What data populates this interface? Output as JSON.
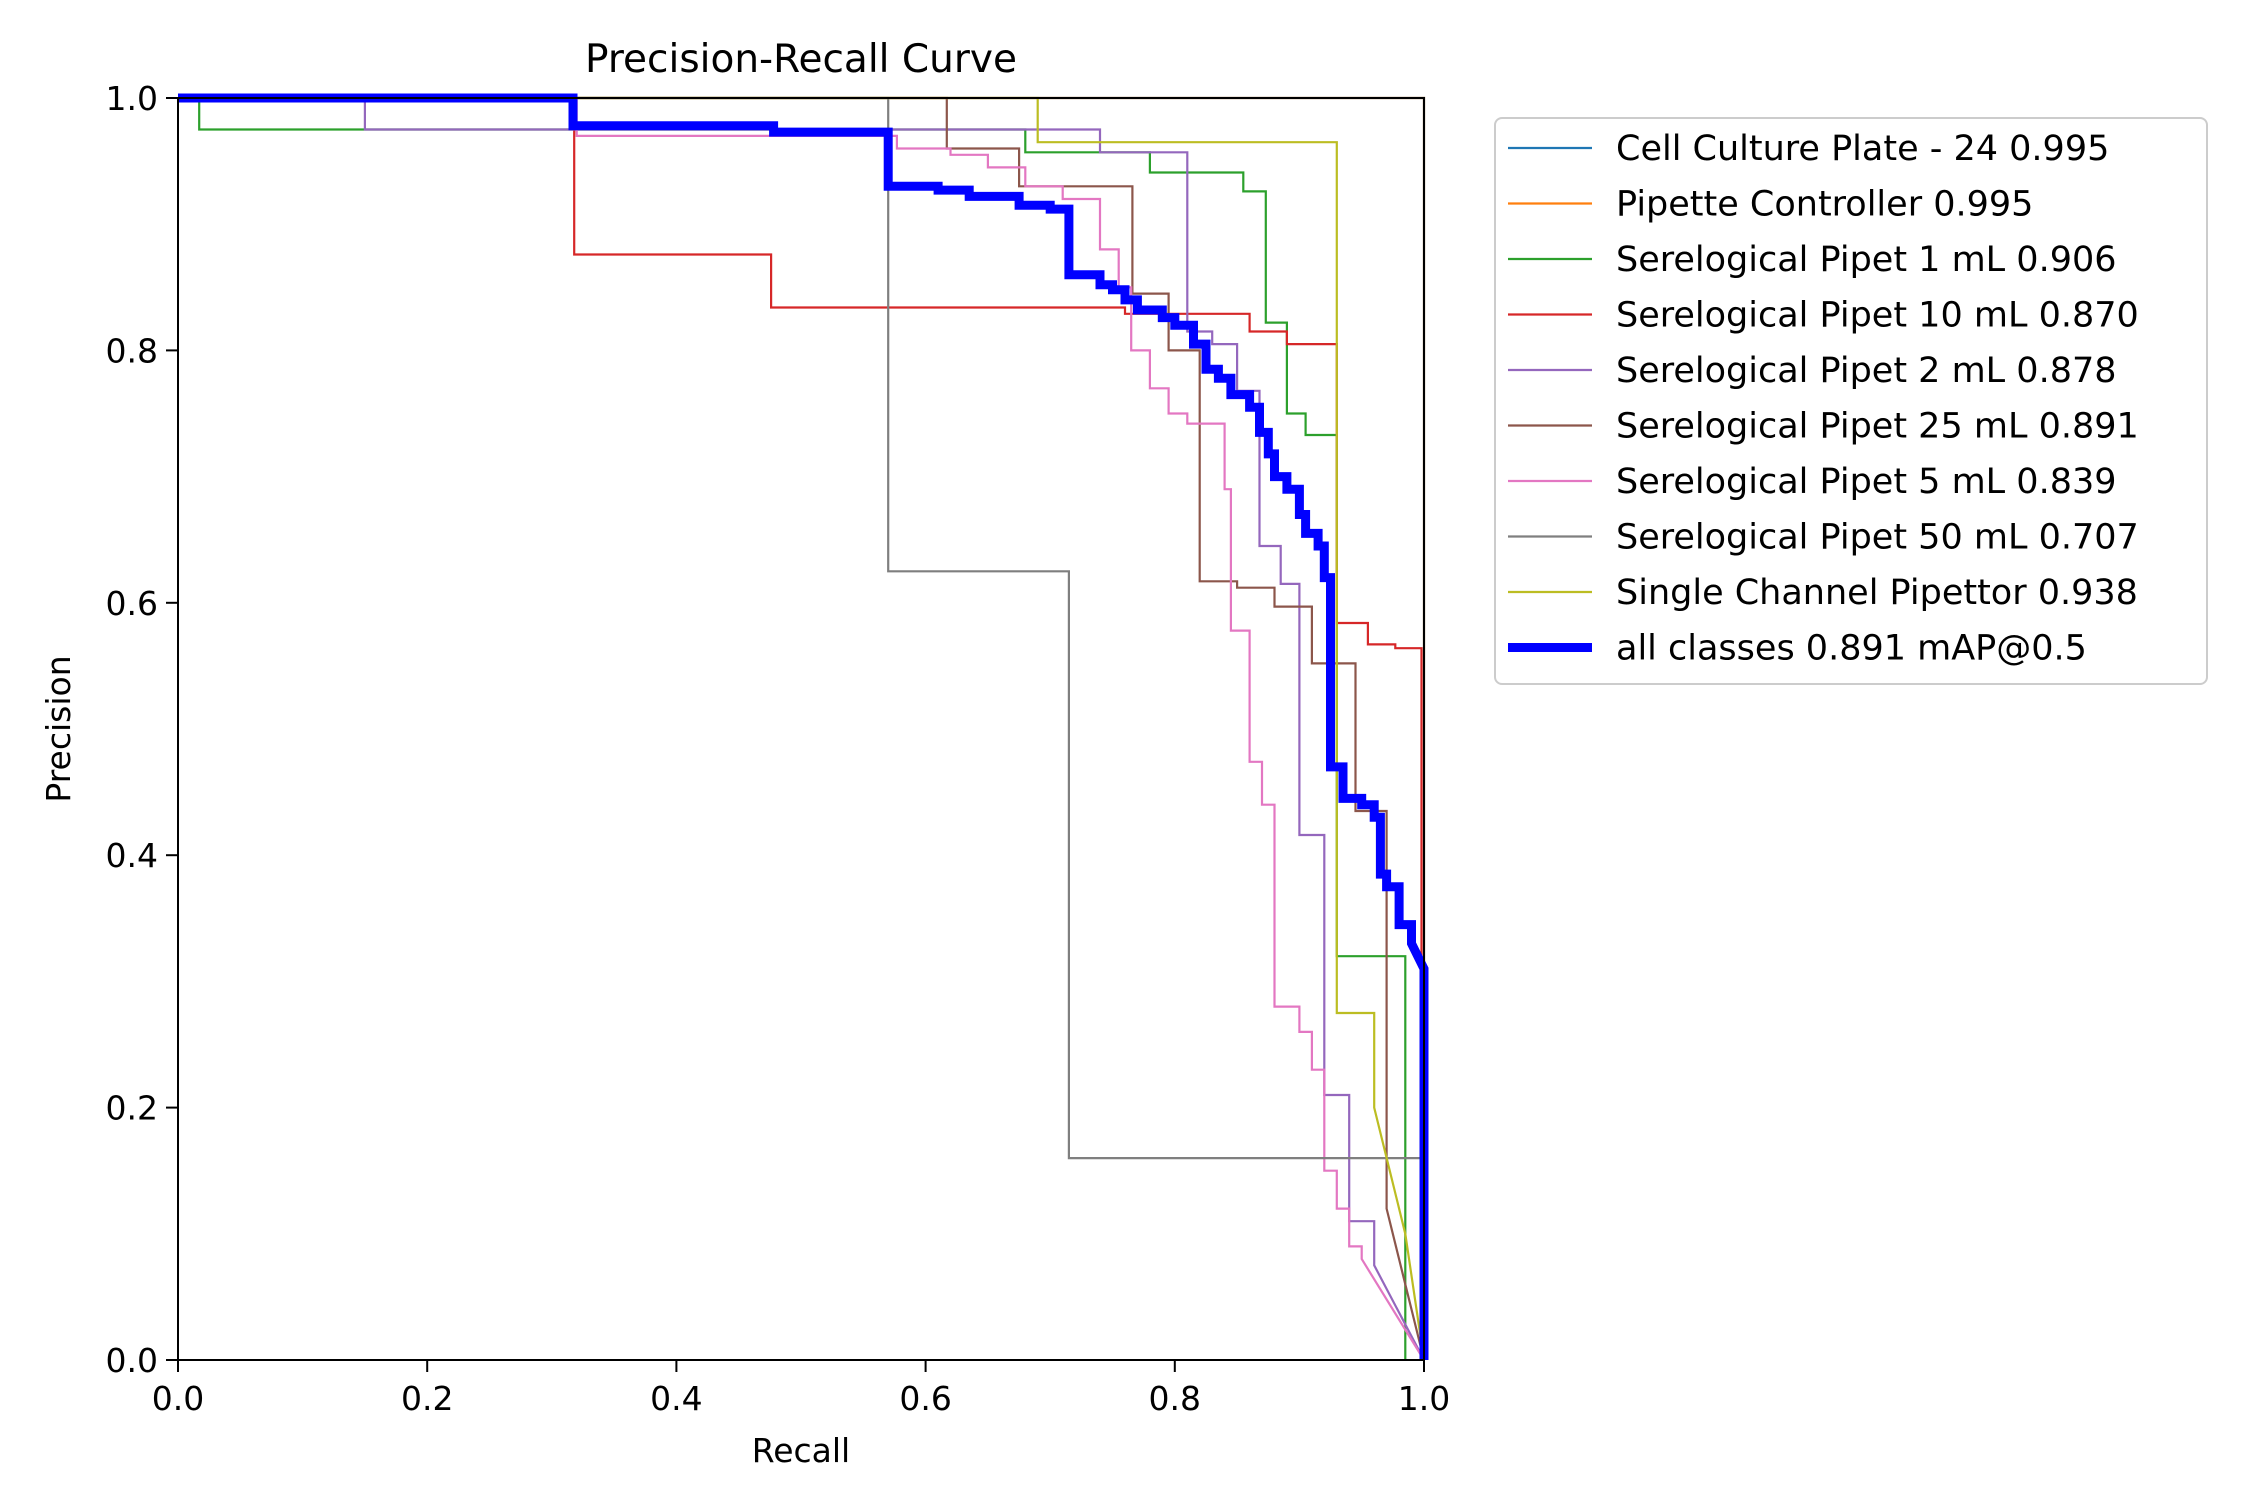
{
  "chart_data": {
    "type": "line",
    "title": "Precision-Recall Curve",
    "xlabel": "Recall",
    "ylabel": "Precision",
    "xlim": [
      0,
      1
    ],
    "ylim": [
      0,
      1
    ],
    "x_ticks": [
      "0.0",
      "0.2",
      "0.4",
      "0.6",
      "0.8",
      "1.0"
    ],
    "y_ticks": [
      "0.0",
      "0.2",
      "0.4",
      "0.6",
      "0.8",
      "1.0"
    ],
    "grid": false,
    "legend_position": "outside-right",
    "series": [
      {
        "name": "Cell Culture Plate - 24 0.995",
        "color": "#1f77b4",
        "points": [
          [
            0,
            1
          ],
          [
            1,
            1
          ],
          [
            1,
            0
          ]
        ]
      },
      {
        "name": "Pipette Controller 0.995",
        "color": "#ff7f0e",
        "points": [
          [
            0,
            1
          ],
          [
            1,
            1
          ],
          [
            1,
            0
          ]
        ]
      },
      {
        "name": "Serelogical Pipet 1 mL 0.906",
        "color": "#2ca02c",
        "points": [
          [
            0,
            1
          ],
          [
            0.017,
            1
          ],
          [
            0.017,
            0.975
          ],
          [
            0.68,
            0.975
          ],
          [
            0.68,
            0.957
          ],
          [
            0.78,
            0.957
          ],
          [
            0.78,
            0.941
          ],
          [
            0.855,
            0.941
          ],
          [
            0.855,
            0.926
          ],
          [
            0.873,
            0.926
          ],
          [
            0.873,
            0.822
          ],
          [
            0.89,
            0.822
          ],
          [
            0.89,
            0.75
          ],
          [
            0.905,
            0.75
          ],
          [
            0.905,
            0.733
          ],
          [
            0.93,
            0.733
          ],
          [
            0.93,
            0.32
          ],
          [
            0.985,
            0.32
          ],
          [
            0.985,
            0
          ]
        ]
      },
      {
        "name": "Serelogical Pipet 10 mL 0.870",
        "color": "#d62728",
        "points": [
          [
            0,
            1
          ],
          [
            0.318,
            1
          ],
          [
            0.318,
            0.876
          ],
          [
            0.476,
            0.876
          ],
          [
            0.476,
            0.834
          ],
          [
            0.76,
            0.834
          ],
          [
            0.76,
            0.829
          ],
          [
            0.86,
            0.829
          ],
          [
            0.86,
            0.815
          ],
          [
            0.89,
            0.815
          ],
          [
            0.89,
            0.805
          ],
          [
            0.93,
            0.805
          ],
          [
            0.93,
            0.584
          ],
          [
            0.955,
            0.584
          ],
          [
            0.955,
            0.567
          ],
          [
            0.977,
            0.567
          ],
          [
            0.977,
            0.564
          ],
          [
            0.998,
            0.564
          ],
          [
            0.998,
            0
          ]
        ]
      },
      {
        "name": "Serelogical Pipet 2 mL 0.878",
        "color": "#9467bd",
        "points": [
          [
            0,
            1
          ],
          [
            0.15,
            1
          ],
          [
            0.15,
            0.975
          ],
          [
            0.57,
            0.975
          ],
          [
            0.57,
            0.975
          ],
          [
            0.74,
            0.975
          ],
          [
            0.74,
            0.957
          ],
          [
            0.81,
            0.957
          ],
          [
            0.81,
            0.815
          ],
          [
            0.83,
            0.815
          ],
          [
            0.83,
            0.805
          ],
          [
            0.85,
            0.805
          ],
          [
            0.85,
            0.768
          ],
          [
            0.868,
            0.768
          ],
          [
            0.868,
            0.645
          ],
          [
            0.885,
            0.645
          ],
          [
            0.885,
            0.615
          ],
          [
            0.9,
            0.615
          ],
          [
            0.9,
            0.416
          ],
          [
            0.92,
            0.416
          ],
          [
            0.92,
            0.21
          ],
          [
            0.94,
            0.21
          ],
          [
            0.94,
            0.11
          ],
          [
            0.96,
            0.11
          ],
          [
            0.96,
            0.075
          ],
          [
            1,
            0
          ]
        ]
      },
      {
        "name": "Serelogical Pipet 25 mL 0.891",
        "color": "#8c564b",
        "points": [
          [
            0,
            1
          ],
          [
            0.617,
            1
          ],
          [
            0.617,
            0.96
          ],
          [
            0.675,
            0.96
          ],
          [
            0.675,
            0.93
          ],
          [
            0.766,
            0.93
          ],
          [
            0.766,
            0.845
          ],
          [
            0.795,
            0.845
          ],
          [
            0.795,
            0.8
          ],
          [
            0.82,
            0.8
          ],
          [
            0.82,
            0.617
          ],
          [
            0.85,
            0.617
          ],
          [
            0.85,
            0.612
          ],
          [
            0.88,
            0.612
          ],
          [
            0.88,
            0.597
          ],
          [
            0.91,
            0.597
          ],
          [
            0.91,
            0.552
          ],
          [
            0.945,
            0.552
          ],
          [
            0.945,
            0.435
          ],
          [
            0.97,
            0.435
          ],
          [
            0.97,
            0.12
          ],
          [
            1,
            0
          ]
        ]
      },
      {
        "name": "Serelogical Pipet 5 mL 0.839",
        "color": "#e377c2",
        "points": [
          [
            0,
            1
          ],
          [
            0.32,
            1
          ],
          [
            0.32,
            0.97
          ],
          [
            0.577,
            0.97
          ],
          [
            0.577,
            0.96
          ],
          [
            0.62,
            0.96
          ],
          [
            0.62,
            0.955
          ],
          [
            0.65,
            0.955
          ],
          [
            0.65,
            0.945
          ],
          [
            0.68,
            0.945
          ],
          [
            0.68,
            0.93
          ],
          [
            0.71,
            0.93
          ],
          [
            0.71,
            0.92
          ],
          [
            0.74,
            0.92
          ],
          [
            0.74,
            0.88
          ],
          [
            0.755,
            0.88
          ],
          [
            0.755,
            0.85
          ],
          [
            0.765,
            0.85
          ],
          [
            0.765,
            0.8
          ],
          [
            0.78,
            0.8
          ],
          [
            0.78,
            0.77
          ],
          [
            0.795,
            0.77
          ],
          [
            0.795,
            0.75
          ],
          [
            0.81,
            0.75
          ],
          [
            0.81,
            0.742
          ],
          [
            0.84,
            0.742
          ],
          [
            0.84,
            0.69
          ],
          [
            0.845,
            0.69
          ],
          [
            0.845,
            0.578
          ],
          [
            0.86,
            0.578
          ],
          [
            0.86,
            0.474
          ],
          [
            0.87,
            0.474
          ],
          [
            0.87,
            0.44
          ],
          [
            0.88,
            0.44
          ],
          [
            0.88,
            0.28
          ],
          [
            0.9,
            0.28
          ],
          [
            0.9,
            0.26
          ],
          [
            0.91,
            0.26
          ],
          [
            0.91,
            0.23
          ],
          [
            0.92,
            0.23
          ],
          [
            0.92,
            0.15
          ],
          [
            0.93,
            0.15
          ],
          [
            0.93,
            0.12
          ],
          [
            0.94,
            0.12
          ],
          [
            0.94,
            0.09
          ],
          [
            0.95,
            0.09
          ],
          [
            0.95,
            0.08
          ],
          [
            1,
            0
          ]
        ]
      },
      {
        "name": "Serelogical Pipet 50 mL 0.707",
        "color": "#7f7f7f",
        "points": [
          [
            0,
            1
          ],
          [
            0.57,
            1
          ],
          [
            0.57,
            0.625
          ],
          [
            0.715,
            0.625
          ],
          [
            0.715,
            0.16
          ],
          [
            1,
            0.16
          ],
          [
            1,
            0
          ]
        ]
      },
      {
        "name": "Single Channel Pipettor 0.938",
        "color": "#bcbd22",
        "points": [
          [
            0,
            1
          ],
          [
            0.69,
            1
          ],
          [
            0.69,
            0.965
          ],
          [
            0.93,
            0.965
          ],
          [
            0.93,
            0.275
          ],
          [
            0.96,
            0.275
          ],
          [
            0.96,
            0.2
          ],
          [
            0.985,
            0.1
          ],
          [
            1,
            0
          ]
        ]
      },
      {
        "name": "all classes 0.891 mAP@0.5",
        "color": "#0000ff",
        "bold": true,
        "points": [
          [
            0,
            1
          ],
          [
            0.317,
            1
          ],
          [
            0.317,
            0.978
          ],
          [
            0.478,
            0.978
          ],
          [
            0.478,
            0.973
          ],
          [
            0.57,
            0.973
          ],
          [
            0.57,
            0.93
          ],
          [
            0.61,
            0.93
          ],
          [
            0.61,
            0.927
          ],
          [
            0.635,
            0.927
          ],
          [
            0.635,
            0.922
          ],
          [
            0.675,
            0.922
          ],
          [
            0.675,
            0.915
          ],
          [
            0.7,
            0.915
          ],
          [
            0.7,
            0.912
          ],
          [
            0.715,
            0.912
          ],
          [
            0.715,
            0.86
          ],
          [
            0.74,
            0.86
          ],
          [
            0.74,
            0.852
          ],
          [
            0.75,
            0.852
          ],
          [
            0.75,
            0.848
          ],
          [
            0.76,
            0.848
          ],
          [
            0.76,
            0.84
          ],
          [
            0.77,
            0.84
          ],
          [
            0.77,
            0.832
          ],
          [
            0.79,
            0.832
          ],
          [
            0.79,
            0.826
          ],
          [
            0.8,
            0.826
          ],
          [
            0.8,
            0.82
          ],
          [
            0.815,
            0.82
          ],
          [
            0.815,
            0.805
          ],
          [
            0.825,
            0.805
          ],
          [
            0.825,
            0.785
          ],
          [
            0.835,
            0.785
          ],
          [
            0.835,
            0.778
          ],
          [
            0.845,
            0.778
          ],
          [
            0.845,
            0.765
          ],
          [
            0.86,
            0.765
          ],
          [
            0.86,
            0.755
          ],
          [
            0.868,
            0.755
          ],
          [
            0.868,
            0.735
          ],
          [
            0.875,
            0.735
          ],
          [
            0.875,
            0.718
          ],
          [
            0.88,
            0.718
          ],
          [
            0.88,
            0.7
          ],
          [
            0.89,
            0.7
          ],
          [
            0.89,
            0.69
          ],
          [
            0.9,
            0.69
          ],
          [
            0.9,
            0.67
          ],
          [
            0.905,
            0.67
          ],
          [
            0.905,
            0.655
          ],
          [
            0.915,
            0.655
          ],
          [
            0.915,
            0.645
          ],
          [
            0.92,
            0.645
          ],
          [
            0.92,
            0.62
          ],
          [
            0.925,
            0.62
          ],
          [
            0.925,
            0.47
          ],
          [
            0.935,
            0.47
          ],
          [
            0.935,
            0.445
          ],
          [
            0.95,
            0.445
          ],
          [
            0.95,
            0.44
          ],
          [
            0.96,
            0.44
          ],
          [
            0.96,
            0.43
          ],
          [
            0.965,
            0.43
          ],
          [
            0.965,
            0.385
          ],
          [
            0.97,
            0.385
          ],
          [
            0.97,
            0.375
          ],
          [
            0.98,
            0.375
          ],
          [
            0.98,
            0.345
          ],
          [
            0.99,
            0.345
          ],
          [
            0.99,
            0.33
          ],
          [
            1,
            0.31
          ],
          [
            1,
            0
          ]
        ]
      }
    ]
  }
}
